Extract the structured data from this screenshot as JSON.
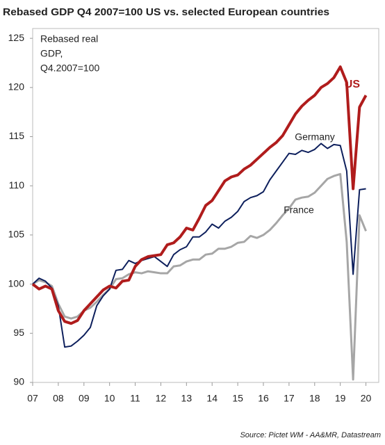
{
  "chart_data": {
    "type": "line",
    "title": "Rebased GDP Q4 2007=100 US vs. selected European countries",
    "annotation": [
      "Rebased real",
      "GDP,",
      "Q4.2007=100"
    ],
    "source": "Source: Pictet WM - AA&MR, Datastream",
    "x": [
      2007,
      2007.25,
      2007.5,
      2007.75,
      2008,
      2008.25,
      2008.5,
      2008.75,
      2009,
      2009.25,
      2009.5,
      2009.75,
      2010,
      2010.25,
      2010.5,
      2010.75,
      2011,
      2011.25,
      2011.5,
      2011.75,
      2012,
      2012.25,
      2012.5,
      2012.75,
      2013,
      2013.25,
      2013.5,
      2013.75,
      2014,
      2014.25,
      2014.5,
      2014.75,
      2015,
      2015.25,
      2015.5,
      2015.75,
      2016,
      2016.25,
      2016.5,
      2016.75,
      2017,
      2017.25,
      2017.5,
      2017.75,
      2018,
      2018.25,
      2018.5,
      2018.75,
      2019,
      2019.25,
      2019.5,
      2019.75,
      2020
    ],
    "series": [
      {
        "name": "US",
        "color": "#b01c1c",
        "width": 4,
        "values": [
          100,
          99.5,
          99.8,
          99.5,
          97.3,
          96.2,
          96.0,
          96.3,
          97.3,
          98.0,
          98.7,
          99.4,
          99.8,
          99.6,
          100.3,
          100.4,
          101.8,
          102.5,
          102.8,
          102.9,
          103.0,
          104.0,
          104.2,
          104.8,
          105.7,
          105.5,
          106.7,
          108.0,
          108.5,
          109.5,
          110.5,
          110.9,
          111.1,
          111.7,
          112.1,
          112.7,
          113.3,
          113.9,
          114.4,
          115.1,
          116.2,
          117.3,
          118.1,
          118.7,
          119.2,
          120.0,
          120.4,
          121.0,
          122.1,
          120.5,
          109.7,
          118.0,
          119.2
        ]
      },
      {
        "name": "Germany",
        "color": "#0d1f5c",
        "width": 2,
        "values": [
          100,
          100.6,
          100.3,
          99.6,
          97.8,
          93.6,
          93.7,
          94.2,
          94.8,
          95.6,
          97.8,
          98.8,
          99.5,
          101.4,
          101.5,
          102.4,
          102.1,
          102.4,
          102.6,
          102.8,
          102.3,
          101.8,
          103.0,
          103.5,
          103.8,
          104.8,
          104.8,
          105.3,
          106.1,
          105.7,
          106.4,
          106.8,
          107.4,
          108.4,
          108.8,
          109.0,
          109.4,
          110.6,
          111.5,
          112.4,
          113.3,
          113.2,
          113.6,
          113.4,
          113.7,
          114.3,
          113.8,
          114.2,
          114.1,
          111.5,
          101.0,
          109.6,
          109.7
        ]
      },
      {
        "name": "France",
        "color": "#a6a6a6",
        "width": 3,
        "values": [
          100,
          100.4,
          100.2,
          99.8,
          98.0,
          96.7,
          96.5,
          96.7,
          97.3,
          97.6,
          98.2,
          98.9,
          99.5,
          100.5,
          100.6,
          101.0,
          101.2,
          101.1,
          101.3,
          101.2,
          101.1,
          101.1,
          101.8,
          101.9,
          102.3,
          102.5,
          102.5,
          103.0,
          103.1,
          103.6,
          103.6,
          103.8,
          104.2,
          104.3,
          104.9,
          104.7,
          105.0,
          105.5,
          106.2,
          107.0,
          107.7,
          108.6,
          108.8,
          108.9,
          109.3,
          110.0,
          110.7,
          111.0,
          111.2,
          104.3,
          90.3,
          107.0,
          105.4
        ]
      }
    ],
    "xlim": [
      2007,
      2020.5
    ],
    "xticks": [
      {
        "value": 2007,
        "label": "07"
      },
      {
        "value": 2008,
        "label": "08"
      },
      {
        "value": 2009,
        "label": "09"
      },
      {
        "value": 2010,
        "label": "10"
      },
      {
        "value": 2011,
        "label": "11"
      },
      {
        "value": 2012,
        "label": "12"
      },
      {
        "value": 2013,
        "label": "13"
      },
      {
        "value": 2014,
        "label": "14"
      },
      {
        "value": 2015,
        "label": "15"
      },
      {
        "value": 2016,
        "label": "16"
      },
      {
        "value": 2017,
        "label": "17"
      },
      {
        "value": 2018,
        "label": "18"
      },
      {
        "value": 2019,
        "label": "19"
      },
      {
        "value": 2020,
        "label": "20"
      }
    ],
    "ylim": [
      90,
      126
    ],
    "yticks": [
      90,
      95,
      100,
      105,
      110,
      115,
      120,
      125
    ]
  }
}
